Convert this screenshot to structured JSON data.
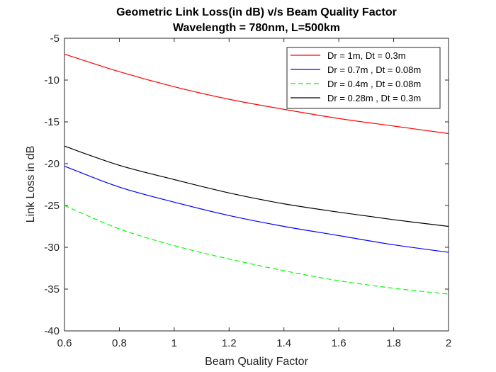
{
  "chart_data": {
    "type": "line",
    "title": "Geometric Link Loss(in dB) v/s Beam Quality Factor",
    "subtitle": "Wavelength = 780nm, L=500km",
    "xlabel": "Beam Quality Factor",
    "ylabel": "Link Loss in dB",
    "xlim": [
      0.6,
      2
    ],
    "ylim": [
      -40,
      -5
    ],
    "xticks": [
      0.6,
      0.8,
      1,
      1.2,
      1.4,
      1.6,
      1.8,
      2
    ],
    "xtick_labels": [
      "0.6",
      "0.8",
      "1",
      "1.2",
      "1.4",
      "1.6",
      "1.8",
      "2"
    ],
    "yticks": [
      -40,
      -35,
      -30,
      -25,
      -20,
      -15,
      -10,
      -5
    ],
    "ytick_labels": [
      "-40",
      "-35",
      "-30",
      "-25",
      "-20",
      "-15",
      "-10",
      "-5"
    ],
    "grid": false,
    "legend_position": "top-right",
    "x": [
      0.6,
      0.8,
      1.0,
      1.2,
      1.4,
      1.6,
      1.8,
      2.0
    ],
    "series": [
      {
        "name": "Dr = 1m, Dt = 0.3m",
        "color": "#ff0000",
        "dash": "solid",
        "values": [
          -6.9,
          -9.0,
          -10.8,
          -12.3,
          -13.5,
          -14.6,
          -15.5,
          -16.4
        ]
      },
      {
        "name": "Dr = 0.7m , Dt = 0.08m",
        "color": "#0000ff",
        "dash": "solid",
        "values": [
          -20.3,
          -22.8,
          -24.6,
          -26.2,
          -27.5,
          -28.6,
          -29.7,
          -30.6
        ]
      },
      {
        "name": "Dr = 0.4m , Dt = 0.08m",
        "color": "#00ff00",
        "dash": "dashed",
        "values": [
          -25.0,
          -27.8,
          -29.8,
          -31.4,
          -32.8,
          -34.0,
          -34.9,
          -35.6
        ]
      },
      {
        "name": "Dr = 0.28m , Dt = 0.3m",
        "color": "#000000",
        "dash": "solid",
        "values": [
          -17.9,
          -20.2,
          -21.9,
          -23.5,
          -24.8,
          -25.8,
          -26.7,
          -27.5
        ]
      }
    ]
  }
}
